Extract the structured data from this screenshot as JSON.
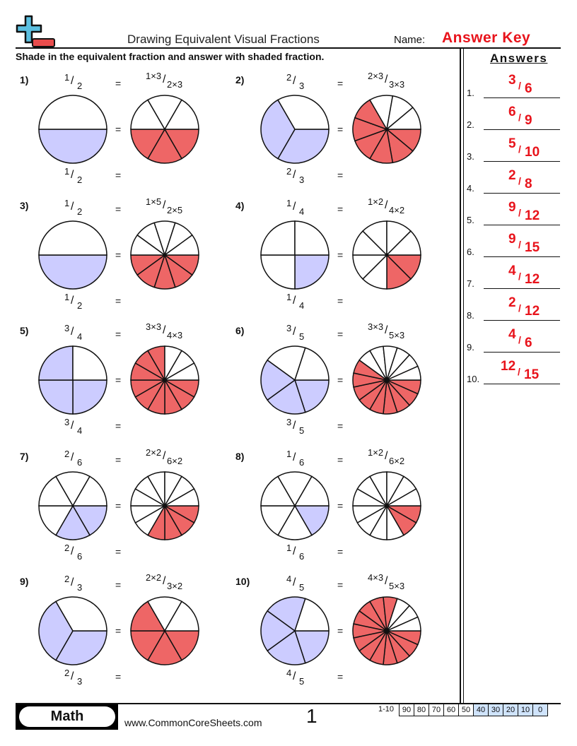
{
  "header": {
    "title": "Drawing Equivalent Visual Fractions",
    "name_label": "Name:",
    "name_value": "Answer Key",
    "instructions": "Shade in the equivalent fraction and answer with shaded fraction."
  },
  "colors": {
    "original_shade": "#ccccff",
    "equivalent_shade": "#ee6666",
    "answer_text": "#e8131b",
    "logo_blue": "#5bbfe0",
    "logo_red": "#e84c4c",
    "score_highlight": "#cfe3fb"
  },
  "problems": [
    {
      "label": "1)",
      "num": "1",
      "den": "2",
      "eq_num": "1×3",
      "eq_den": "2×3",
      "mult": 3
    },
    {
      "label": "2)",
      "num": "2",
      "den": "3",
      "eq_num": "2×3",
      "eq_den": "3×3",
      "mult": 3
    },
    {
      "label": "3)",
      "num": "1",
      "den": "2",
      "eq_num": "1×5",
      "eq_den": "2×5",
      "mult": 5
    },
    {
      "label": "4)",
      "num": "1",
      "den": "4",
      "eq_num": "1×2",
      "eq_den": "4×2",
      "mult": 2
    },
    {
      "label": "5)",
      "num": "3",
      "den": "4",
      "eq_num": "3×3",
      "eq_den": "4×3",
      "mult": 3
    },
    {
      "label": "6)",
      "num": "3",
      "den": "5",
      "eq_num": "3×3",
      "eq_den": "5×3",
      "mult": 3
    },
    {
      "label": "7)",
      "num": "2",
      "den": "6",
      "eq_num": "2×2",
      "eq_den": "6×2",
      "mult": 2
    },
    {
      "label": "8)",
      "num": "1",
      "den": "6",
      "eq_num": "1×2",
      "eq_den": "6×2",
      "mult": 2
    },
    {
      "label": "9)",
      "num": "2",
      "den": "3",
      "eq_num": "2×2",
      "eq_den": "3×2",
      "mult": 2
    },
    {
      "label": "10)",
      "num": "4",
      "den": "5",
      "eq_num": "4×3",
      "eq_den": "5×3",
      "mult": 3
    }
  ],
  "equals": "=",
  "answers": {
    "title": "Answers",
    "items": [
      {
        "label": "1.",
        "num": "3",
        "den": "6"
      },
      {
        "label": "2.",
        "num": "6",
        "den": "9"
      },
      {
        "label": "3.",
        "num": "5",
        "den": "10"
      },
      {
        "label": "4.",
        "num": "2",
        "den": "8"
      },
      {
        "label": "5.",
        "num": "9",
        "den": "12"
      },
      {
        "label": "6.",
        "num": "9",
        "den": "15"
      },
      {
        "label": "7.",
        "num": "4",
        "den": "12"
      },
      {
        "label": "8.",
        "num": "2",
        "den": "12"
      },
      {
        "label": "9.",
        "num": "4",
        "den": "6"
      },
      {
        "label": "10.",
        "num": "12",
        "den": "15"
      }
    ]
  },
  "footer": {
    "subject": "Math",
    "website": "www.CommonCoreSheets.com",
    "page_number": "1",
    "score_range_label": "1-10",
    "scores": [
      "90",
      "80",
      "70",
      "60",
      "50",
      "40",
      "30",
      "20",
      "10",
      "0"
    ],
    "highlighted_scores": [
      "40",
      "30",
      "20",
      "10",
      "0"
    ]
  }
}
